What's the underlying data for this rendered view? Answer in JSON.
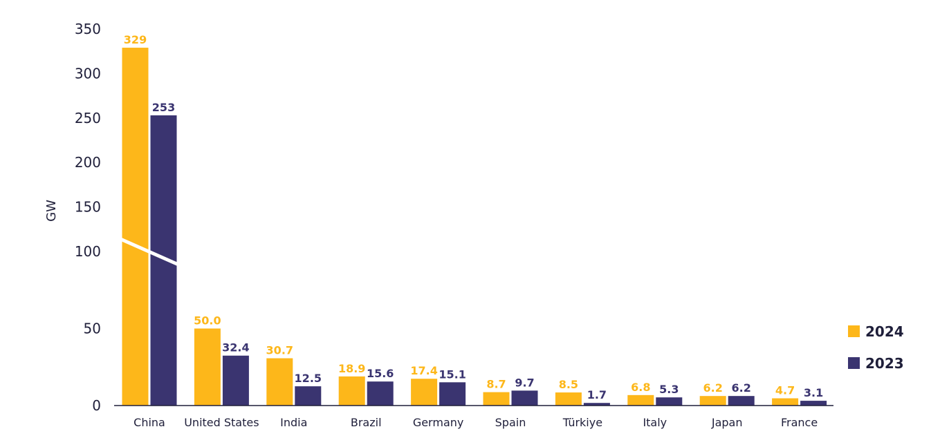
{
  "chart_data": {
    "type": "bar",
    "title": "",
    "xlabel": "",
    "ylabel": "GW",
    "categories": [
      "China",
      "United States",
      "India",
      "Brazil",
      "Germany",
      "Spain",
      "Türkiye",
      "Italy",
      "Japan",
      "France"
    ],
    "series": [
      {
        "name": "2024",
        "color": "#FDB71A",
        "values": [
          329,
          50.0,
          30.7,
          18.9,
          17.4,
          8.7,
          8.5,
          6.8,
          6.2,
          4.7
        ],
        "labels": [
          "329",
          "50.0",
          "30.7",
          "18.9",
          "17.4",
          "8.7",
          "8.5",
          "6.8",
          "6.2",
          "4.7"
        ]
      },
      {
        "name": "2023",
        "color": "#3A3470",
        "values": [
          253,
          32.4,
          12.5,
          15.6,
          15.1,
          9.7,
          1.7,
          5.3,
          6.2,
          3.1
        ],
        "labels": [
          "253",
          "32.4",
          "12.5",
          "15.6",
          "15.1",
          "9.7",
          "1.7",
          "5.3",
          "6.2",
          "3.1"
        ]
      }
    ],
    "yticks": [
      0,
      50,
      100,
      150,
      200,
      250,
      300,
      350
    ],
    "ytick_labels": [
      "0",
      "50",
      "100",
      "150",
      "200",
      "250",
      "300",
      "350"
    ],
    "ylim": [
      0,
      350
    ],
    "axis_break": {
      "lower_segment": [
        0,
        100
      ],
      "upper_segment": [
        100,
        350
      ]
    },
    "grid": false,
    "legend_position": "right"
  }
}
